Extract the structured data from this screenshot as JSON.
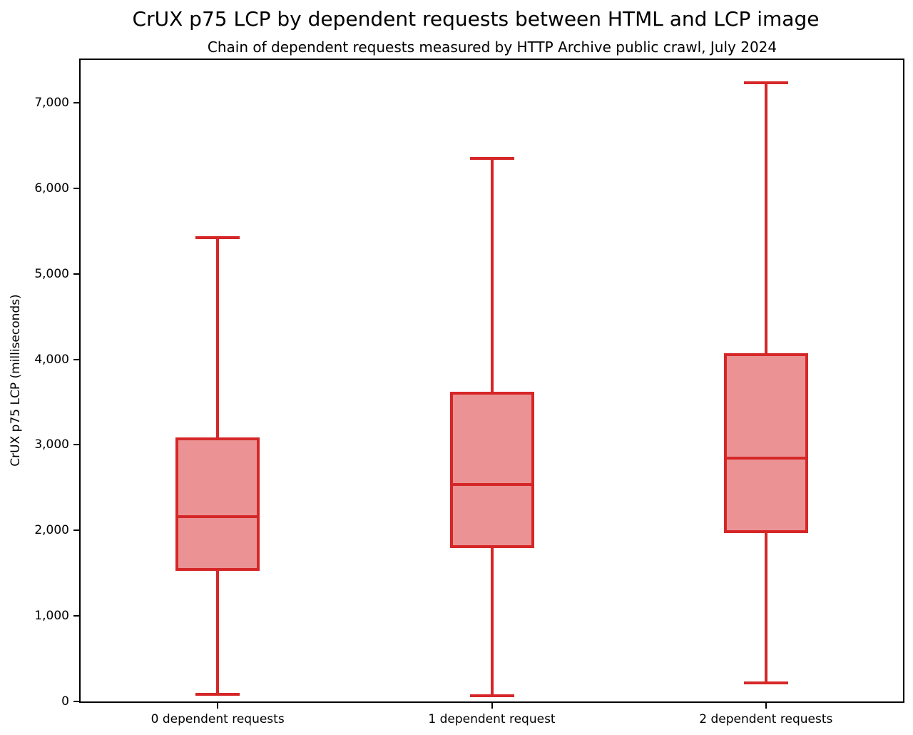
{
  "colors": {
    "box_line": "#d62728",
    "box_fill": "#eb9394",
    "axis_line": "#000000",
    "text": "#000000",
    "background": "#ffffff"
  },
  "chart_data": {
    "type": "boxplot",
    "title": "CrUX p75 LCP by dependent requests between HTML and LCP image",
    "subtitle": "Chain of dependent requests measured by HTTP Archive public crawl, July 2024",
    "ylabel": "CrUX p75 LCP (milliseconds)",
    "xlabel": "",
    "grid": false,
    "legend": false,
    "ylim": [
      0,
      7500
    ],
    "yticks": [
      0,
      1000,
      2000,
      3000,
      4000,
      5000,
      6000,
      7000
    ],
    "ytick_labels": [
      "0",
      "1,000",
      "2,000",
      "3,000",
      "4,000",
      "5,000",
      "6,000",
      "7,000"
    ],
    "categories": [
      "0 dependent requests",
      "1 dependent request",
      "2 dependent requests"
    ],
    "series": [
      {
        "name": "0 dependent requests",
        "whisker_low": 80,
        "q1": 1530,
        "median": 2160,
        "q3": 3090,
        "whisker_high": 5420
      },
      {
        "name": "1 dependent request",
        "whisker_low": 70,
        "q1": 1790,
        "median": 2540,
        "q3": 3620,
        "whisker_high": 6350
      },
      {
        "name": "2 dependent requests",
        "whisker_low": 215,
        "q1": 1965,
        "median": 2845,
        "q3": 4075,
        "whisker_high": 7230
      }
    ]
  }
}
